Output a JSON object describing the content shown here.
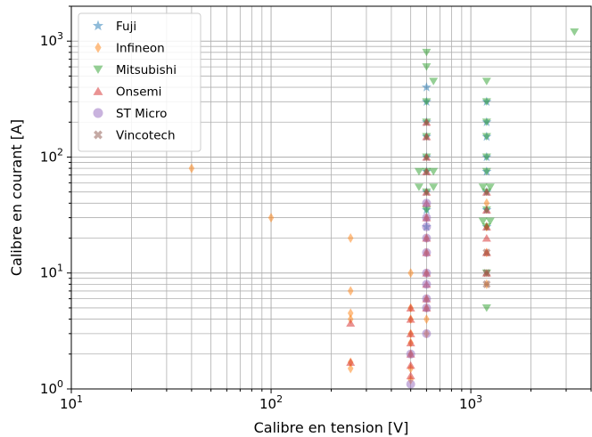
{
  "chart_data": {
    "type": "scatter",
    "xlabel": "Calibre en tension [V]",
    "ylabel": "Calibre en courant [A]",
    "xscale": "log",
    "yscale": "log",
    "xlim": [
      10,
      4000
    ],
    "ylim": [
      1,
      2000
    ],
    "x_ticks": [
      10,
      100,
      1000
    ],
    "y_ticks": [
      1,
      10,
      100,
      1000
    ],
    "x_tick_labels": [
      {
        "base": "10",
        "exp": "1"
      },
      {
        "base": "10",
        "exp": "2"
      },
      {
        "base": "10",
        "exp": "3"
      }
    ],
    "y_tick_labels": [
      {
        "base": "10",
        "exp": "0"
      },
      {
        "base": "10",
        "exp": "1"
      },
      {
        "base": "10",
        "exp": "2"
      },
      {
        "base": "10",
        "exp": "3"
      }
    ],
    "grid": true,
    "legend_position": "top-left",
    "series": [
      {
        "name": "Fuji",
        "color": "#1f77b4",
        "marker": "star",
        "points": [
          [
            600,
            400
          ],
          [
            600,
            300
          ],
          [
            600,
            200
          ],
          [
            600,
            150
          ],
          [
            600,
            100
          ],
          [
            600,
            75
          ],
          [
            600,
            50
          ],
          [
            600,
            35
          ],
          [
            600,
            25
          ],
          [
            1200,
            300
          ],
          [
            1200,
            200
          ],
          [
            1200,
            150
          ],
          [
            1200,
            100
          ],
          [
            1200,
            75
          ],
          [
            1200,
            50
          ],
          [
            1200,
            35
          ],
          [
            1200,
            25
          ]
        ]
      },
      {
        "name": "Infineon",
        "color": "#ff7f0e",
        "marker": "diamond",
        "points": [
          [
            40,
            80
          ],
          [
            100,
            30
          ],
          [
            250,
            20
          ],
          [
            250,
            7
          ],
          [
            250,
            4.5
          ],
          [
            250,
            4
          ],
          [
            250,
            1.7
          ],
          [
            250,
            1.5
          ],
          [
            500,
            10
          ],
          [
            500,
            5
          ],
          [
            500,
            4
          ],
          [
            500,
            3
          ],
          [
            500,
            2.5
          ],
          [
            500,
            2
          ],
          [
            500,
            1.5
          ],
          [
            500,
            1.2
          ],
          [
            600,
            30
          ],
          [
            600,
            20
          ],
          [
            600,
            15
          ],
          [
            600,
            10
          ],
          [
            600,
            6
          ],
          [
            600,
            5
          ],
          [
            600,
            4
          ],
          [
            600,
            3
          ],
          [
            1200,
            40
          ],
          [
            1200,
            25
          ],
          [
            1200,
            15
          ],
          [
            1200,
            8
          ]
        ]
      },
      {
        "name": "Mitsubishi",
        "color": "#2ca02c",
        "marker": "triangle-down",
        "points": [
          [
            3300,
            1200
          ],
          [
            600,
            800
          ],
          [
            600,
            600
          ],
          [
            650,
            450
          ],
          [
            600,
            300
          ],
          [
            600,
            200
          ],
          [
            600,
            150
          ],
          [
            600,
            100
          ],
          [
            600,
            75
          ],
          [
            550,
            75
          ],
          [
            650,
            75
          ],
          [
            600,
            50
          ],
          [
            550,
            55
          ],
          [
            650,
            55
          ],
          [
            600,
            35
          ],
          [
            1200,
            450
          ],
          [
            1200,
            300
          ],
          [
            1200,
            200
          ],
          [
            1200,
            150
          ],
          [
            1200,
            100
          ],
          [
            1200,
            75
          ],
          [
            1200,
            50
          ],
          [
            1150,
            55
          ],
          [
            1250,
            55
          ],
          [
            1200,
            35
          ],
          [
            1200,
            25
          ],
          [
            1150,
            28
          ],
          [
            1250,
            28
          ],
          [
            1200,
            10
          ],
          [
            1200,
            5
          ]
        ]
      },
      {
        "name": "Onsemi",
        "color": "#d62728",
        "marker": "triangle-up",
        "points": [
          [
            250,
            3.7
          ],
          [
            250,
            1.7
          ],
          [
            500,
            5
          ],
          [
            500,
            4
          ],
          [
            500,
            3
          ],
          [
            500,
            2.5
          ],
          [
            500,
            2
          ],
          [
            500,
            1.6
          ],
          [
            500,
            1.3
          ],
          [
            600,
            200
          ],
          [
            600,
            150
          ],
          [
            600,
            100
          ],
          [
            600,
            75
          ],
          [
            600,
            50
          ],
          [
            600,
            40
          ],
          [
            600,
            30
          ],
          [
            600,
            20
          ],
          [
            600,
            15
          ],
          [
            600,
            10
          ],
          [
            600,
            8
          ],
          [
            600,
            6
          ],
          [
            600,
            5
          ],
          [
            1200,
            50
          ],
          [
            1200,
            35
          ],
          [
            1200,
            25
          ],
          [
            1200,
            20
          ],
          [
            1200,
            15
          ],
          [
            1200,
            10
          ]
        ]
      },
      {
        "name": "ST Micro",
        "color": "#9467bd",
        "marker": "circle",
        "points": [
          [
            500,
            2
          ],
          [
            500,
            1.1
          ],
          [
            600,
            40
          ],
          [
            600,
            30
          ],
          [
            600,
            25
          ],
          [
            600,
            20
          ],
          [
            600,
            15
          ],
          [
            600,
            10
          ],
          [
            600,
            8
          ],
          [
            600,
            6
          ],
          [
            600,
            5
          ],
          [
            600,
            3
          ]
        ]
      },
      {
        "name": "Vincotech",
        "color": "#8c564b",
        "marker": "x",
        "points": [
          [
            1200,
            15
          ],
          [
            1200,
            10
          ],
          [
            1200,
            8
          ]
        ]
      }
    ]
  }
}
